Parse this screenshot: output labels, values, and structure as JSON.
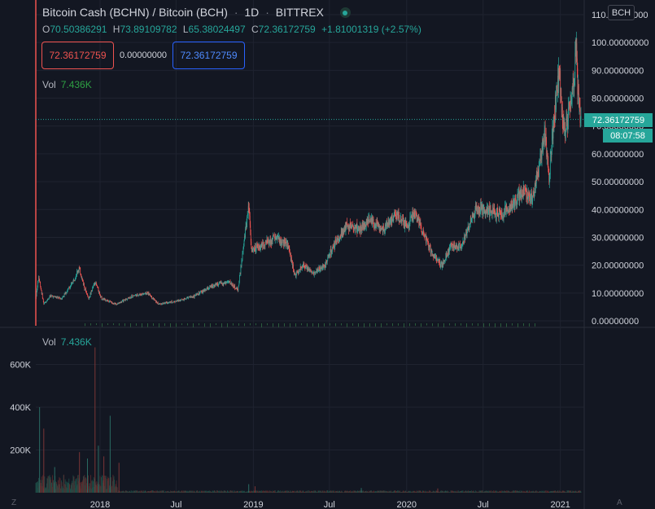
{
  "header": {
    "pair": "Bitcoin Cash (BCHN) / Bitcoin (BCH)",
    "interval": "1D",
    "exchange": "BITTREX",
    "status_icon": "market-open-dot-icon"
  },
  "ohlc": {
    "open_key": "O",
    "open": "70.50386291",
    "high_key": "H",
    "high": "73.89109782",
    "low_key": "L",
    "low": "65.38024497",
    "close_key": "C",
    "close": "72.36172759",
    "change": "+1.81001319 (+2.57%)"
  },
  "trade": {
    "sell_price": "72.36172759",
    "spread": "0.00000000",
    "buy_price": "72.36172759"
  },
  "volume": {
    "label": "Vol",
    "value": "7.436K"
  },
  "right_axis": {
    "currency_tag": "BCH",
    "last_price": "72.36172759",
    "countdown": "08:07:58"
  },
  "colors": {
    "background": "#131722",
    "up": "#26a69a",
    "down": "#ef5350",
    "grid": "#1f2330",
    "text": "#b2b5be"
  },
  "corner_icons": {
    "left": "Z",
    "right": "A"
  },
  "chart_data": {
    "type": "candlestick",
    "price_axis": {
      "ylim": [
        0,
        110
      ],
      "ticks": [
        {
          "value": 110,
          "label": "110.00000000"
        },
        {
          "value": 100,
          "label": "100.00000000"
        },
        {
          "value": 90,
          "label": "90.00000000"
        },
        {
          "value": 80,
          "label": "80.00000000"
        },
        {
          "value": 70,
          "label": "70.00000000"
        },
        {
          "value": 60,
          "label": "60.00000000"
        },
        {
          "value": 50,
          "label": "50.00000000"
        },
        {
          "value": 40,
          "label": "40.00000000"
        },
        {
          "value": 30,
          "label": "30.00000000"
        },
        {
          "value": 20,
          "label": "20.00000000"
        },
        {
          "value": 10,
          "label": "10.00000000"
        },
        {
          "value": 0,
          "label": "0.00000000"
        }
      ]
    },
    "volume_axis": {
      "ylim": [
        0,
        720000
      ],
      "ticks": [
        {
          "value": 600000,
          "label": "600K"
        },
        {
          "value": 400000,
          "label": "400K"
        },
        {
          "value": 200000,
          "label": "200K"
        }
      ]
    },
    "time_axis": {
      "start": "2017-08-01",
      "end": "2021-02-19",
      "ticks": [
        {
          "date": "2018-01-01",
          "label": "2018"
        },
        {
          "date": "2018-07-01",
          "label": "Jul"
        },
        {
          "date": "2019-01-01",
          "label": "2019"
        },
        {
          "date": "2019-07-01",
          "label": "Jul"
        },
        {
          "date": "2020-01-01",
          "label": "2020"
        },
        {
          "date": "2020-07-01",
          "label": "Jul"
        },
        {
          "date": "2021-01-01",
          "label": "2021"
        }
      ]
    },
    "price_path": [
      {
        "date": "2017-08-01",
        "close": 8
      },
      {
        "date": "2017-08-08",
        "close": 16
      },
      {
        "date": "2017-08-20",
        "close": 6
      },
      {
        "date": "2017-09-05",
        "close": 9
      },
      {
        "date": "2017-10-01",
        "close": 8
      },
      {
        "date": "2017-10-25",
        "close": 13
      },
      {
        "date": "2017-11-12",
        "close": 19
      },
      {
        "date": "2017-11-25",
        "close": 12
      },
      {
        "date": "2017-12-05",
        "close": 8
      },
      {
        "date": "2017-12-20",
        "close": 14
      },
      {
        "date": "2018-01-05",
        "close": 8
      },
      {
        "date": "2018-02-10",
        "close": 6
      },
      {
        "date": "2018-03-20",
        "close": 9
      },
      {
        "date": "2018-04-25",
        "close": 10
      },
      {
        "date": "2018-05-20",
        "close": 6
      },
      {
        "date": "2018-07-01",
        "close": 7
      },
      {
        "date": "2018-08-15",
        "close": 9
      },
      {
        "date": "2018-10-01",
        "close": 13
      },
      {
        "date": "2018-11-05",
        "close": 14
      },
      {
        "date": "2018-11-25",
        "close": 11
      },
      {
        "date": "2018-12-05",
        "close": 22
      },
      {
        "date": "2018-12-21",
        "close": 42
      },
      {
        "date": "2018-12-28",
        "close": 25
      },
      {
        "date": "2019-01-20",
        "close": 27
      },
      {
        "date": "2019-02-20",
        "close": 30
      },
      {
        "date": "2019-03-25",
        "close": 27
      },
      {
        "date": "2019-04-10",
        "close": 16
      },
      {
        "date": "2019-05-01",
        "close": 20
      },
      {
        "date": "2019-05-25",
        "close": 17
      },
      {
        "date": "2019-06-20",
        "close": 20
      },
      {
        "date": "2019-07-15",
        "close": 28
      },
      {
        "date": "2019-08-10",
        "close": 34
      },
      {
        "date": "2019-09-10",
        "close": 33
      },
      {
        "date": "2019-10-05",
        "close": 36
      },
      {
        "date": "2019-11-05",
        "close": 33
      },
      {
        "date": "2019-12-05",
        "close": 38
      },
      {
        "date": "2020-01-01",
        "close": 34
      },
      {
        "date": "2020-01-20",
        "close": 38
      },
      {
        "date": "2020-02-10",
        "close": 32
      },
      {
        "date": "2020-03-01",
        "close": 24
      },
      {
        "date": "2020-03-25",
        "close": 20
      },
      {
        "date": "2020-04-15",
        "close": 27
      },
      {
        "date": "2020-05-10",
        "close": 27
      },
      {
        "date": "2020-05-25",
        "close": 33
      },
      {
        "date": "2020-06-15",
        "close": 40
      },
      {
        "date": "2020-07-20",
        "close": 40
      },
      {
        "date": "2020-08-15",
        "close": 38
      },
      {
        "date": "2020-09-10",
        "close": 42
      },
      {
        "date": "2020-10-05",
        "close": 47
      },
      {
        "date": "2020-10-25",
        "close": 44
      },
      {
        "date": "2020-11-10",
        "close": 54
      },
      {
        "date": "2020-11-25",
        "close": 68
      },
      {
        "date": "2020-12-05",
        "close": 52
      },
      {
        "date": "2020-12-15",
        "close": 70
      },
      {
        "date": "2020-12-28",
        "close": 90
      },
      {
        "date": "2021-01-05",
        "close": 75
      },
      {
        "date": "2021-01-12",
        "close": 68
      },
      {
        "date": "2021-01-22",
        "close": 78
      },
      {
        "date": "2021-02-01",
        "close": 85
      },
      {
        "date": "2021-02-08",
        "close": 95
      },
      {
        "date": "2021-02-14",
        "close": 78
      },
      {
        "date": "2021-02-19",
        "close": 72.36
      }
    ],
    "volume_spikes": [
      {
        "date": "2017-08-10",
        "value": 400000
      },
      {
        "date": "2017-08-20",
        "value": 300000
      },
      {
        "date": "2017-09-15",
        "value": 120000
      },
      {
        "date": "2017-11-13",
        "value": 190000
      },
      {
        "date": "2017-12-02",
        "value": 160000
      },
      {
        "date": "2017-12-20",
        "value": 680000
      },
      {
        "date": "2017-12-28",
        "value": 220000
      },
      {
        "date": "2018-01-10",
        "value": 170000
      },
      {
        "date": "2018-01-25",
        "value": 360000
      },
      {
        "date": "2018-02-15",
        "value": 140000
      },
      {
        "date": "2018-12-21",
        "value": 40000
      },
      {
        "date": "2019-01-05",
        "value": 30000
      },
      {
        "date": "2019-09-15",
        "value": 22000
      },
      {
        "date": "2020-03-15",
        "value": 20000
      }
    ]
  }
}
